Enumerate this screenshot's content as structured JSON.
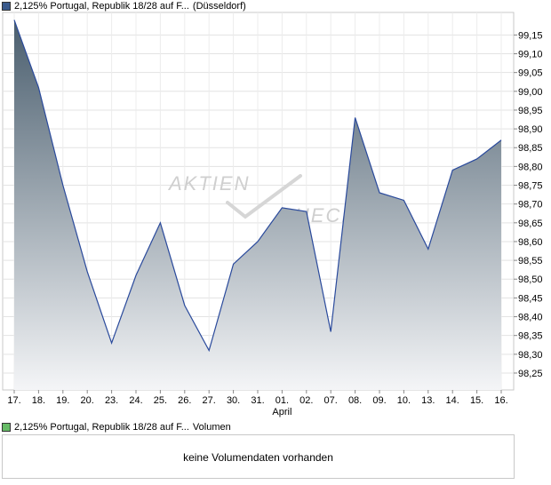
{
  "legend_price": {
    "title": "2,125% Portugal, Republik 18/28 auf F...",
    "suffix": "(Düsseldorf)",
    "color": "#3a5a8c"
  },
  "legend_volume": {
    "title": "2,125% Portugal, Republik 18/28 auf F...",
    "suffix": "Volumen",
    "color": "#66bb66"
  },
  "volume_message": "keine Volumendaten vorhanden",
  "watermark": {
    "line1": "AKTIEN",
    "line2": "CHECK"
  },
  "chart_data": {
    "type": "area",
    "title": "",
    "xlabel": "",
    "ylabel": "",
    "x": [
      "17.",
      "18.",
      "19.",
      "20.",
      "23.",
      "24.",
      "25.",
      "26.",
      "27.",
      "30.",
      "31.",
      "01.",
      "02.",
      "07.",
      "08.",
      "09.",
      "10.",
      "13.",
      "14.",
      "15.",
      "16."
    ],
    "month_labels": [
      {
        "index": 11,
        "label": "April"
      }
    ],
    "series": [
      {
        "values": [
          99.19,
          99.01,
          98.75,
          98.52,
          98.33,
          98.51,
          98.65,
          98.43,
          98.31,
          98.54,
          98.6,
          98.69,
          98.68,
          98.36,
          98.93,
          98.73,
          98.71,
          98.58,
          98.79,
          98.82,
          98.87
        ],
        "line_color": "#2a4a9c"
      }
    ],
    "yticks": [
      98.25,
      98.3,
      98.35,
      98.4,
      98.45,
      98.5,
      98.55,
      98.6,
      98.65,
      98.7,
      98.75,
      98.8,
      98.85,
      98.9,
      98.95,
      99.0,
      99.05,
      99.1,
      99.15
    ],
    "ytick_labels": [
      "98,25",
      "98,30",
      "98,35",
      "98,40",
      "98,45",
      "98,50",
      "98,55",
      "98,60",
      "98,65",
      "98,70",
      "98,75",
      "98,80",
      "98,85",
      "98,90",
      "98,95",
      "99,00",
      "99,05",
      "99,10",
      "99,15"
    ],
    "ylim": [
      98.205,
      99.21
    ],
    "grid": true,
    "gradient": {
      "top": "#4a5e6e",
      "bottom": "#f4f5f7"
    }
  }
}
